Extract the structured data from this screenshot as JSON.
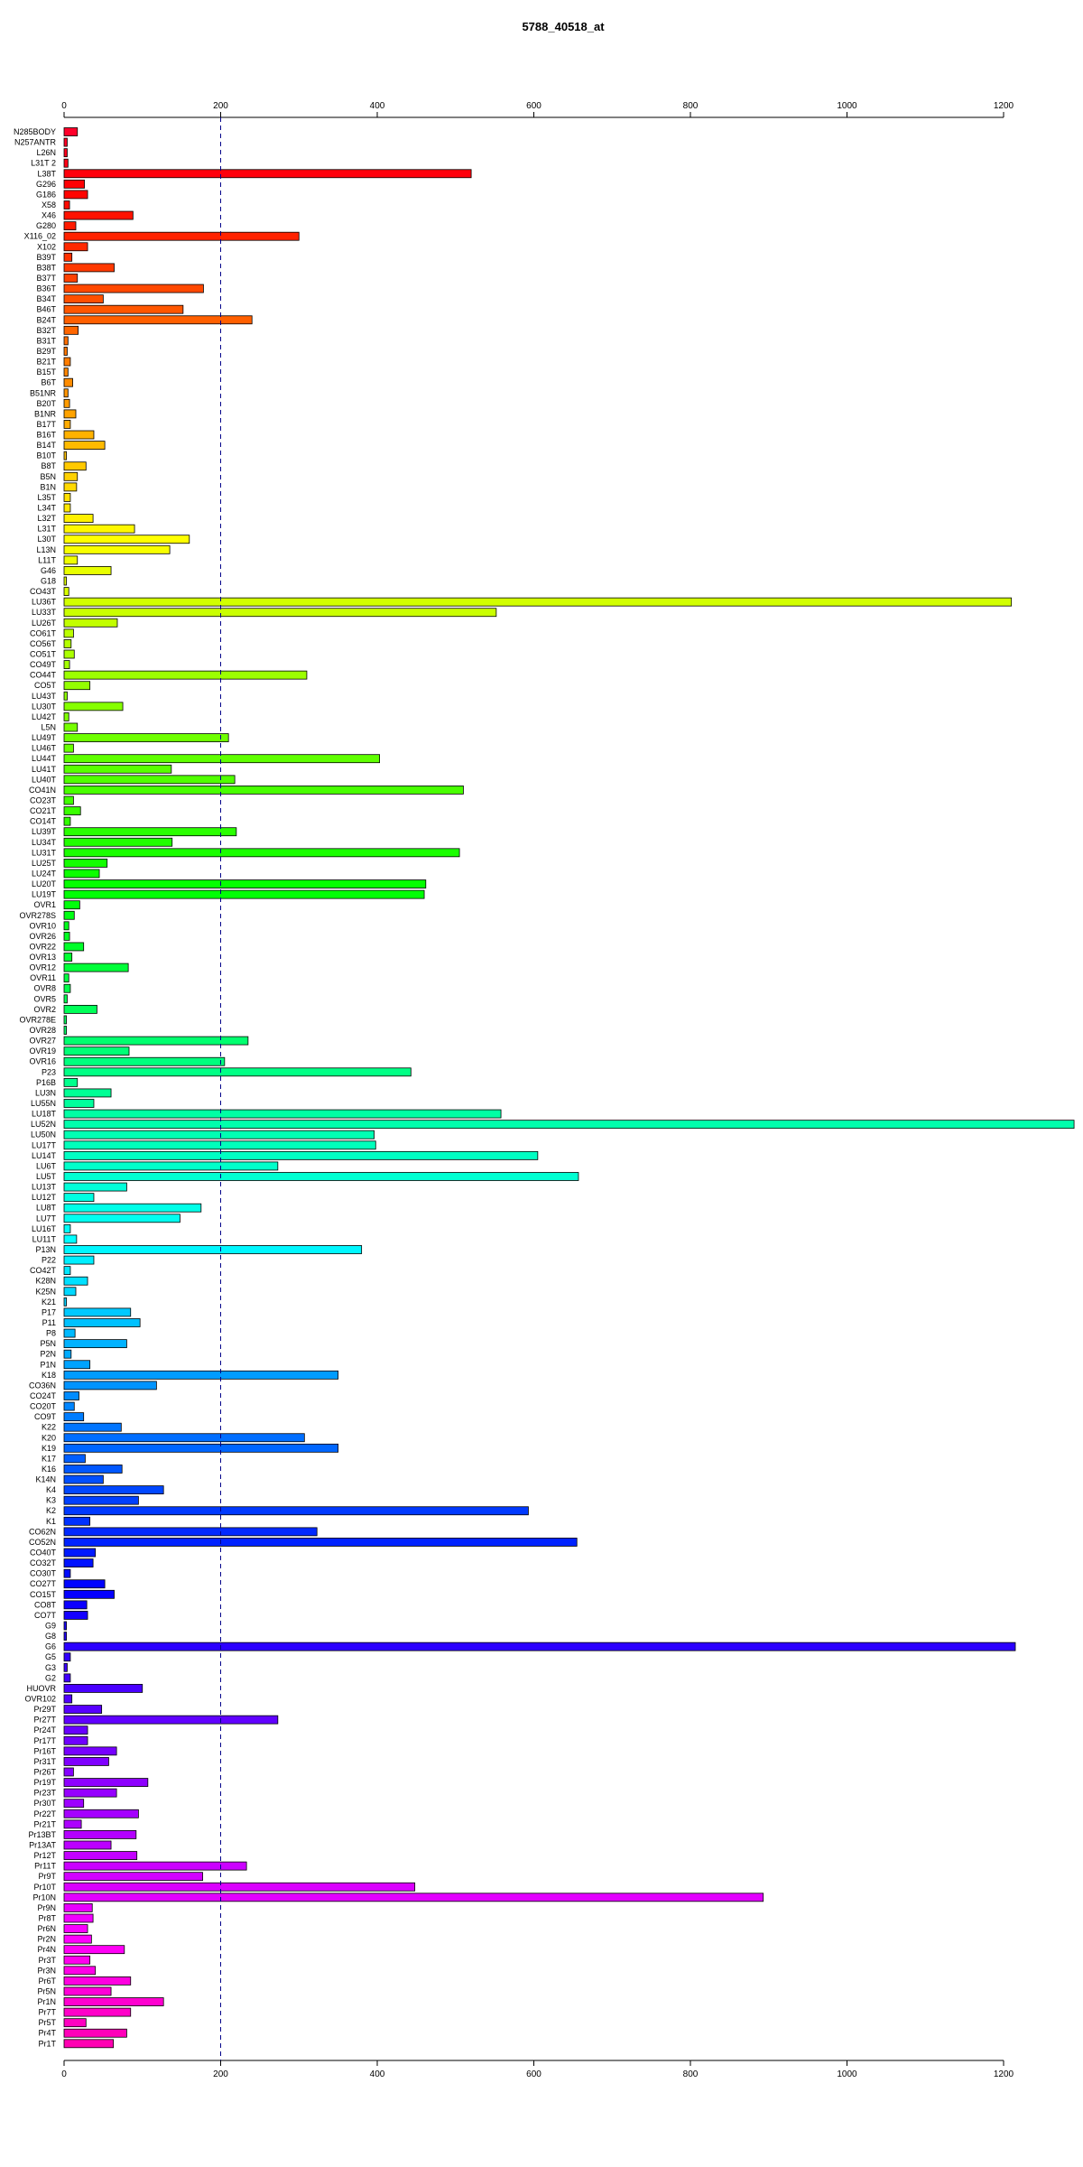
{
  "chart_data": {
    "type": "bar",
    "orientation": "horizontal",
    "title": "5788_40518_at",
    "xlabel": "",
    "ylabel": "",
    "xlim": [
      0,
      1200
    ],
    "xticks": [
      0,
      200,
      400,
      600,
      800,
      1000,
      1200
    ],
    "reference_line": {
      "value": 200,
      "style": "dashed",
      "color": "#00008b"
    },
    "grid": false,
    "legend": "none",
    "color_scheme": "rainbow",
    "categories": [
      "N285BODY",
      "N257ANTR",
      "L26N",
      "L31T 2",
      "L38T",
      "G296",
      "G186",
      "X58",
      "X46",
      "G280",
      "X116_02",
      "X102",
      "B39T",
      "B38T",
      "B37T",
      "B36T",
      "B34T",
      "B46T",
      "B24T",
      "B32T",
      "B31T",
      "B29T",
      "B21T",
      "B15T",
      "B6T",
      "B51NR",
      "B20T",
      "B1NR",
      "B17T",
      "B16T",
      "B14T",
      "B10T",
      "B8T",
      "B5N",
      "B1N",
      "L35T",
      "L34T",
      "L32T",
      "L31T",
      "L30T",
      "L13N",
      "L11T",
      "G46",
      "G18",
      "CO43T",
      "LU36T",
      "LU33T",
      "LU26T",
      "CO61T",
      "CO56T",
      "CO51T",
      "CO49T",
      "CO44T",
      "CO5T",
      "LU43T",
      "LU30T",
      "LU42T",
      "L5N",
      "LU49T",
      "LU46T",
      "LU44T",
      "LU41T",
      "LU40T",
      "CO41N",
      "CO23T",
      "CO21T",
      "CO14T",
      "LU39T",
      "LU34T",
      "LU31T",
      "LU25T",
      "LU24T",
      "LU20T",
      "LU19T",
      "OVR1",
      "OVR278S",
      "OVR10",
      "OVR26",
      "OVR22",
      "OVR13",
      "OVR12",
      "OVR11",
      "OVR8",
      "OVR5",
      "OVR2",
      "OVR278E",
      "OVR28",
      "OVR27",
      "OVR19",
      "OVR16",
      "P23",
      "P16B",
      "LU3N",
      "LU55N",
      "LU18T",
      "LU52N",
      "LU50N",
      "LU17T",
      "LU14T",
      "LU6T",
      "LU5T",
      "LU13T",
      "LU12T",
      "LU8T",
      "LU7T",
      "LU16T",
      "LU11T",
      "P13N",
      "P22",
      "CO42T",
      "K28N",
      "K25N",
      "K21",
      "P17",
      "P11",
      "P8",
      "P5N",
      "P2N",
      "P1N",
      "K18",
      "CO36N",
      "CO24T",
      "CO20T",
      "CO9T",
      "K22",
      "K20",
      "K19",
      "K17",
      "K16",
      "K14N",
      "K4",
      "K3",
      "K2",
      "K1",
      "CO62N",
      "CO52N",
      "CO40T",
      "CO32T",
      "CO30T",
      "CO27T",
      "CO15T",
      "CO8T",
      "CO7T",
      "G9",
      "G8",
      "G6",
      "G5",
      "G3",
      "G2",
      "HUOVR",
      "OVR102",
      "Pr29T",
      "Pr27T",
      "Pr24T",
      "Pr17T",
      "Pr16T",
      "Pr31T",
      "Pr26T",
      "Pr19T",
      "Pr23T",
      "Pr30T",
      "Pr22T",
      "Pr21T",
      "Pr13BT",
      "Pr13AT",
      "Pr12T",
      "Pr11T",
      "Pr9T",
      "Pr10T",
      "Pr10N",
      "Pr9N",
      "Pr8T",
      "Pr6N",
      "Pr2N",
      "Pr4N",
      "Pr3T",
      "Pr3N",
      "Pr6T",
      "Pr5N",
      "Pr1N",
      "Pr7T",
      "Pr5T",
      "Pr4T",
      "Pr1T"
    ],
    "values": [
      17,
      4,
      4,
      5,
      520,
      26,
      30,
      7,
      88,
      15,
      300,
      30,
      10,
      64,
      17,
      178,
      50,
      152,
      240,
      18,
      5,
      4,
      8,
      5,
      11,
      5,
      7,
      15,
      8,
      38,
      52,
      3,
      28,
      17,
      16,
      8,
      8,
      37,
      90,
      160,
      135,
      17,
      60,
      3,
      6,
      1210,
      552,
      68,
      12,
      9,
      13,
      7,
      310,
      33,
      4,
      75,
      6,
      17,
      210,
      12,
      403,
      137,
      218,
      510,
      12,
      21,
      8,
      220,
      138,
      505,
      55,
      45,
      462,
      460,
      20,
      13,
      6,
      7,
      25,
      10,
      82,
      6,
      8,
      4,
      42,
      3,
      3,
      235,
      83,
      205,
      443,
      17,
      60,
      38,
      558,
      1290,
      396,
      398,
      605,
      273,
      657,
      80,
      38,
      175,
      148,
      8,
      16,
      380,
      38,
      8,
      30,
      15,
      3,
      85,
      97,
      14,
      80,
      9,
      33,
      350,
      118,
      19,
      13,
      25,
      73,
      307,
      350,
      27,
      74,
      50,
      127,
      95,
      593,
      33,
      323,
      655,
      40,
      37,
      8,
      52,
      64,
      29,
      30,
      3,
      3,
      1215,
      8,
      4,
      8,
      100,
      10,
      48,
      273,
      30,
      30,
      67,
      57,
      12,
      107,
      67,
      25,
      95,
      22,
      92,
      60,
      93,
      233,
      177,
      448,
      893,
      36,
      37,
      30,
      35,
      77,
      33,
      40,
      85,
      60,
      127,
      85,
      28,
      80,
      63
    ]
  }
}
